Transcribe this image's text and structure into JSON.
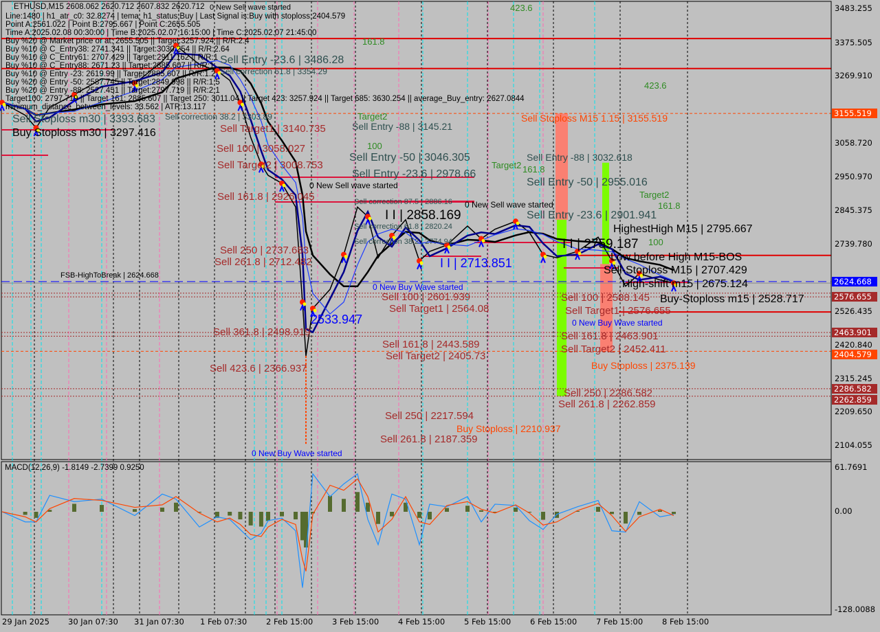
{
  "symbol_header": "ETHUSD,M15  2608.062 2620.712 2607.832 2620.712",
  "info_lines": [
    "Line:1480 | h1_atr_c0: 32.8274 | tema_h1_status:Buy | Last Signal is:Buy with stoploss:2404.579",
    "Point A:2561.022 | Point B:2795.667 | Point C:2655.505",
    "Time A:2025.02.08 00:30:00 | Time B:2025.02.07 16:15:00 | Time C:2025.02.07 21:45:00",
    "Buy %20 @ Market price or at: 2655.505 || Target:3257.924 || R/R:2.4",
    "Buy %10 @ C_Entry38: 2741.341 || Target:3030.254 || R/R:2.64",
    "Buy %10 @ C_Entry61: 2707.429 || Target:2911.162 || R/R:1",
    "Buy %10 @ C_Entry88: 2671.23 || Target:2885.607 || R/R:1",
    "Buy %10 @ Entry -23: 2619.99 || Target:2885.607 || R/R:1.2",
    "Buy %20 @ Entry -50: 2587.745 || Target:2849.998 || R/R:1.5",
    "Buy %20 @ Entry -88: 2527.451 || Target:2797.719 || R/R:2.1",
    "Target100: 2797.719 || Target 161: 2885.607 || Target 250: 3011.04 || Target 423: 3257.924 || Target 685: 3630.254 || average_Buy_entry: 2627.0844",
    "minimum_distance_between_levels: 33.562 | ATR:13.117"
  ],
  "colors": {
    "background": "#c0c0c0",
    "sell_level": "#a52a2a",
    "stoploss": "#ff4500",
    "entry": "#2f4f4f",
    "fib_green": "#2e8b22",
    "buy_wave": "#0000ff",
    "bar_green": "#7cfc00",
    "bar_salmon": "#fa8072",
    "level_line": "#e00000"
  },
  "chart_labels": [
    "Sell Entry -23.6 | 3486.28",
    "0 New Sell wave started",
    "Sell Stoploss m30 | 3393.683",
    "Buy Stoploss m30 | 3297.416",
    "Sell correction 61.8 | 3354.29",
    "Sell correction 38.2 | 3303.89",
    "161.8",
    "423.6",
    "423.6",
    "Target2",
    "Sell Entry -88 | 3145.21",
    "Sell Target1 | 3140.735",
    "Sell 100 | 3058.027",
    "100",
    "Sell Entry -50 | 3046.305",
    "Sell Target2 | 3008.753",
    "Sell Entry -23.6 | 2978.66",
    "0 New Sell wave started",
    "Sell 161.8 | 2926.045",
    "Sell correction 87.5 | 2886.16",
    "I I | 2858.169",
    "0 New Sell wave started",
    "Sell correction 61.8 | 2820.24",
    "Sell correction 38.2 | 2774.94",
    "I I | 2713.851",
    "Sell  250 | 2737.683",
    "Sell  261.8 | 2712.482",
    "FSB-HighToBreak | 2624.668",
    "0 New Buy Wave started",
    "Sell 100 | 2601.939",
    "Sell Target1 | 2564.08",
    "2533.947",
    "Sell  361.8 | 2498.919",
    "Sell 161.8 | 2443.589",
    "Sell Target2 | 2405.73",
    "Sell  423.6 | 2366.937",
    "Sell  250 | 2217.594",
    "Buy Stoploss | 2210.937",
    "Sell  261.8 | 2187.359",
    "0 New Buy Wave started",
    "Sell Stoploss M15 1.15 | 3155.519",
    "Sell Entry -88 | 3032.618",
    "161.8",
    "Target2",
    "Sell Entry -50 | 2955.016",
    "Target2",
    "Sell Entry -23.6 | 2901.941",
    "161.8",
    "HighestHigh   M15 | 2795.667",
    "100",
    "I I | 2759.187",
    "Low before High   M15-BOS",
    "Sell-Stoploss M15 | 2707.429",
    "High-shift m15 | 2675.124",
    "Sell 100 | 2588.145",
    "Sell Target1 | 2576.655",
    "0 New Buy Wave started",
    "Buy-Stoploss m15 | 2528.717",
    "Sell 161.8 | 2463.901",
    "Sell Target2 | 2452.411",
    "Buy Stoploss | 2375.139",
    "Sell  250 | 2286.582",
    "Sell  261.8 | 2262.859"
  ],
  "price_axis": {
    "ticks": [
      "3483.255",
      "3375.505",
      "3269.910",
      "3058.720",
      "2950.970",
      "2845.375",
      "2739.780",
      "2526.435",
      "2420.840",
      "2315.245",
      "2209.650",
      "2104.055"
    ],
    "tick_values": [
      3483.255,
      3375.505,
      3269.91,
      3058.72,
      2950.97,
      2845.375,
      2739.78,
      2526.435,
      2420.84,
      2315.245,
      2209.65,
      2104.055
    ],
    "range": [
      2104.055,
      3483.255
    ],
    "tags": [
      {
        "text": "3155.519",
        "value": 3155.519,
        "color": "#ff4500"
      },
      {
        "text": "2624.668",
        "value": 2624.668,
        "color": "#0000ff"
      },
      {
        "text": "2576.655",
        "value": 2576.655,
        "color": "#a52a2a"
      },
      {
        "text": "2463.901",
        "value": 2463.901,
        "color": "#a52a2a"
      },
      {
        "text": "2404.579",
        "value": 2404.579,
        "color": "#ff4500"
      },
      {
        "text": "2286.582",
        "value": 2286.582,
        "color": "#a52a2a"
      },
      {
        "text": "2262.859",
        "value": 2262.859,
        "color": "#a52a2a"
      }
    ]
  },
  "time_axis": [
    "29 Jan 2025",
    "30 Jan 07:30",
    "31 Jan 07:30",
    "1 Feb 07:30",
    "2 Feb 15:00",
    "3 Feb 15:00",
    "4 Feb 15:00",
    "5 Feb 15:00",
    "6 Feb 15:00",
    "7 Feb 15:00",
    "8 Feb 15:00"
  ],
  "macd": {
    "title": "MACD(12,26,9) -1.8149 -2.7399 0.9250",
    "ticks": [
      "61.7691",
      "0.00",
      "-128.0088"
    ],
    "range": [
      -128.0088,
      61.7691
    ]
  },
  "chart_data": {
    "type": "line",
    "title": "ETHUSD,M15",
    "ylim": [
      2104.055,
      3483.255
    ],
    "grid": false,
    "price_series": [
      [
        "2025-01-29 07:30",
        3190
      ],
      [
        "2025-01-29 16:00",
        3150
      ],
      [
        "2025-01-29 20:00",
        3110
      ],
      [
        "2025-01-30 01:00",
        3175
      ],
      [
        "2025-01-30 10:00",
        3215
      ],
      [
        "2025-01-30 20:00",
        3265
      ],
      [
        "2025-01-31 08:00",
        3250
      ],
      [
        "2025-01-31 18:00",
        3320
      ],
      [
        "2025-01-31 23:00",
        3370
      ],
      [
        "2025-02-01 07:30",
        3310
      ],
      [
        "2025-02-01 16:00",
        3290
      ],
      [
        "2025-02-01 22:00",
        3260
      ],
      [
        "2025-02-02 03:00",
        3190
      ],
      [
        "2025-02-02 08:00",
        3080
      ],
      [
        "2025-02-02 13:00",
        2995
      ],
      [
        "2025-02-02 16:00",
        2960
      ],
      [
        "2025-02-02 21:00",
        2935
      ],
      [
        "2025-02-03 02:00",
        2860
      ],
      [
        "2025-02-03 04:30",
        2560
      ],
      [
        "2025-02-03 05:45",
        2390
      ],
      [
        "2025-02-03 08:15",
        2540
      ],
      [
        "2025-02-03 14:30",
        2600
      ],
      [
        "2025-02-03 19:30",
        2710
      ],
      [
        "2025-02-04 00:30",
        2860
      ],
      [
        "2025-02-04 04:15",
        2830
      ],
      [
        "2025-02-04 08:00",
        2700
      ],
      [
        "2025-02-04 13:00",
        2770
      ],
      [
        "2025-02-04 18:00",
        2820
      ],
      [
        "2025-02-04 23:00",
        2690
      ],
      [
        "2025-02-05 02:45",
        2720
      ],
      [
        "2025-02-05 09:00",
        2740
      ],
      [
        "2025-02-05 16:30",
        2800
      ],
      [
        "2025-02-05 21:30",
        2760
      ],
      [
        "2025-02-06 02:30",
        2790
      ],
      [
        "2025-02-06 10:00",
        2815
      ],
      [
        "2025-02-06 15:00",
        2780
      ],
      [
        "2025-02-06 20:00",
        2710
      ],
      [
        "2025-02-07 01:00",
        2700
      ],
      [
        "2025-02-07 08:30",
        2720
      ],
      [
        "2025-02-07 16:00",
        2765
      ],
      [
        "2025-02-07 21:00",
        2690
      ],
      [
        "2025-02-08 02:00",
        2610
      ],
      [
        "2025-02-08 07:00",
        2650
      ],
      [
        "2025-02-08 14:30",
        2630
      ],
      [
        "2025-02-08 19:30",
        2620
      ]
    ],
    "low_wick": [
      "2025-02-03 05:45",
      2110
    ],
    "levels": [
      {
        "value": 3392,
        "style": "solid",
        "color": "#e00000"
      },
      {
        "value": 3297.416,
        "style": "solid",
        "color": "#e00000"
      },
      {
        "value": 3155.519,
        "style": "dashed",
        "color": "#ff4500"
      },
      {
        "value": 2707.429,
        "style": "solid",
        "color": "#e00000"
      },
      {
        "value": 2624.668,
        "style": "dashed",
        "color": "#0000ff"
      },
      {
        "value": 2588.145,
        "style": "dotted",
        "color": "#a52a2a"
      },
      {
        "value": 2576.655,
        "style": "dotted",
        "color": "#a52a2a"
      },
      {
        "value": 2528.717,
        "style": "solid",
        "color": "#e00000"
      },
      {
        "value": 2463.901,
        "style": "dotted",
        "color": "#a52a2a"
      },
      {
        "value": 2452.411,
        "style": "dotted",
        "color": "#a52a2a"
      },
      {
        "value": 2404.579,
        "style": "dashed",
        "color": "#ff4500"
      },
      {
        "value": 2286.582,
        "style": "dotted",
        "color": "#a52a2a"
      },
      {
        "value": 2262.859,
        "style": "dotted",
        "color": "#a52a2a"
      }
    ]
  }
}
